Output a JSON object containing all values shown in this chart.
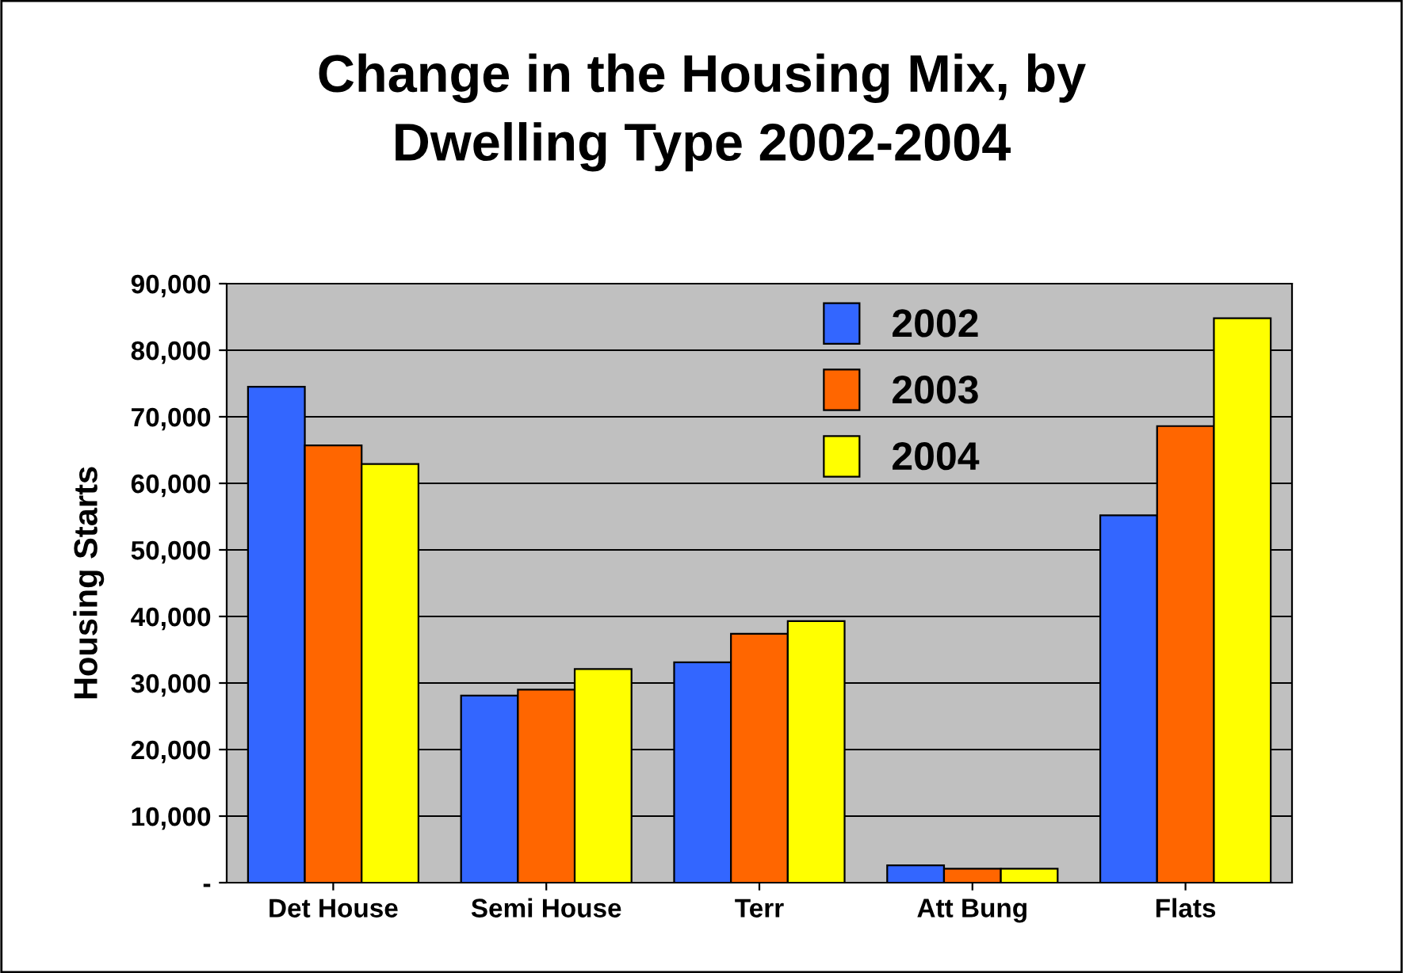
{
  "chart_data": {
    "type": "bar",
    "title": "Change in the Housing Mix, by\nDwelling Type 2002-2004",
    "ylabel": "Housing Starts",
    "categories": [
      "Det House",
      "Semi House",
      "Terr",
      "Att Bung",
      "Flats"
    ],
    "series": [
      {
        "name": "2002",
        "color": "#3366ff",
        "values": [
          74500,
          28100,
          33100,
          2600,
          55200
        ]
      },
      {
        "name": "2003",
        "color": "#ff6600",
        "values": [
          65700,
          29000,
          37400,
          2100,
          68600
        ]
      },
      {
        "name": "2004",
        "color": "#ffff00",
        "values": [
          62900,
          32100,
          39300,
          2100,
          84800
        ]
      }
    ],
    "ylim": [
      0,
      90000
    ],
    "yticks": [
      {
        "value": 0,
        "label": "-"
      },
      {
        "value": 10000,
        "label": "10,000"
      },
      {
        "value": 20000,
        "label": "20,000"
      },
      {
        "value": 30000,
        "label": "30,000"
      },
      {
        "value": 40000,
        "label": "40,000"
      },
      {
        "value": 50000,
        "label": "50,000"
      },
      {
        "value": 60000,
        "label": "60,000"
      },
      {
        "value": 70000,
        "label": "70,000"
      },
      {
        "value": 80000,
        "label": "80,000"
      },
      {
        "value": 90000,
        "label": "90,000"
      }
    ],
    "grid": "y",
    "legend": "top right"
  }
}
